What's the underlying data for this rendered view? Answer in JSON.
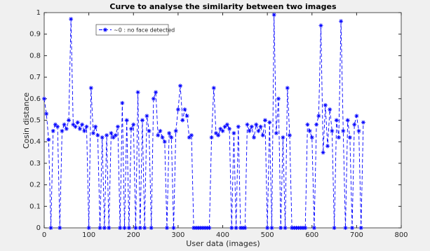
{
  "chart_data": {
    "type": "line",
    "title": "Curve to analyse the similarity between two images",
    "xlabel": "User data (images)",
    "ylabel": "Cosin distance",
    "xlim": [
      0,
      800
    ],
    "ylim": [
      0,
      1
    ],
    "xticks": [
      0,
      100,
      200,
      300,
      400,
      500,
      600,
      700,
      800
    ],
    "yticks": [
      0,
      0.1,
      0.2,
      0.3,
      0.4,
      0.5,
      0.6,
      0.7,
      0.8,
      0.9,
      1
    ],
    "legend": "upper left",
    "x": [
      0,
      5,
      10,
      15,
      20,
      25,
      30,
      35,
      40,
      45,
      50,
      55,
      60,
      65,
      70,
      75,
      80,
      85,
      90,
      95,
      100,
      105,
      110,
      115,
      120,
      125,
      130,
      135,
      140,
      145,
      150,
      155,
      160,
      165,
      170,
      175,
      180,
      185,
      190,
      195,
      200,
      205,
      210,
      215,
      220,
      225,
      230,
      235,
      240,
      245,
      250,
      255,
      260,
      265,
      270,
      275,
      280,
      285,
      290,
      295,
      300,
      305,
      310,
      315,
      320,
      325,
      330,
      335,
      340,
      345,
      350,
      355,
      360,
      365,
      370,
      375,
      380,
      385,
      390,
      395,
      400,
      405,
      410,
      415,
      420,
      425,
      430,
      435,
      440,
      445,
      450,
      455,
      460,
      465,
      470,
      475,
      480,
      485,
      490,
      495,
      500,
      505,
      510,
      515,
      520,
      525,
      530,
      535,
      540,
      545,
      550,
      555,
      560,
      565,
      570,
      575,
      580,
      585,
      590,
      595,
      600,
      605,
      610,
      615,
      620,
      625,
      630,
      635,
      640,
      645,
      650,
      655,
      660,
      665,
      670,
      675,
      680,
      685,
      690,
      695,
      700,
      705,
      710,
      715
    ],
    "series": [
      {
        "name": "~0 : no face detected",
        "color": "#0000ff",
        "values": [
          0.6,
          0.53,
          0.41,
          0,
          0.45,
          0.48,
          0.47,
          0,
          0.45,
          0.48,
          0.46,
          0.5,
          0.97,
          0.48,
          0.47,
          0.49,
          0.46,
          0.48,
          0.45,
          0.47,
          0,
          0.65,
          0.44,
          0.47,
          0.43,
          0,
          0.42,
          0,
          0.43,
          0,
          0.44,
          0.42,
          0.43,
          0.47,
          0,
          0.58,
          0,
          0.5,
          0,
          0.46,
          0.48,
          0,
          0.63,
          0,
          0.5,
          0,
          0.52,
          0.45,
          0,
          0.6,
          0.63,
          0.43,
          0.45,
          0.42,
          0.4,
          0,
          0.44,
          0.42,
          0,
          0.45,
          0.55,
          0.66,
          0.5,
          0.55,
          0.52,
          0.42,
          0.43,
          0,
          0,
          0,
          0,
          0,
          0,
          0,
          0,
          0.42,
          0.65,
          0.44,
          0.43,
          0.46,
          0.45,
          0.47,
          0.48,
          0.46,
          0,
          0.44,
          0,
          0.47,
          0,
          0,
          0,
          0.48,
          0.45,
          0.47,
          0.42,
          0.48,
          0.45,
          0.47,
          0.43,
          0.5,
          0,
          0.49,
          0,
          0.99,
          0.44,
          0.6,
          0,
          0.42,
          0,
          0.65,
          0.43,
          0,
          0,
          0,
          0,
          0,
          0,
          0,
          0.48,
          0.45,
          0.42,
          0,
          0.48,
          0.52,
          0.94,
          0.35,
          0.57,
          0.38,
          0.55,
          0.45,
          0,
          0.5,
          0.42,
          0.96,
          0.45,
          0,
          0.5,
          0.42,
          0,
          0.48,
          0.52,
          0.45,
          0,
          0.49
        ]
      }
    ]
  }
}
